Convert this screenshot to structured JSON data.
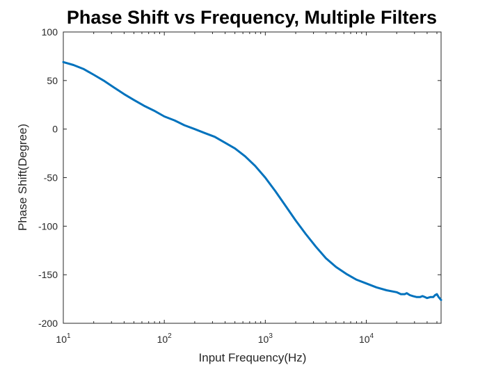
{
  "chart_data": {
    "type": "line",
    "title": "Phase Shift vs Frequency, Multiple Filters",
    "xlabel": "Input Frequency(Hz)",
    "ylabel": "Phase Shift(Degree)",
    "xscale": "log",
    "xlim": [
      10,
      55000
    ],
    "ylim": [
      -200,
      100
    ],
    "grid": false,
    "legend": "none",
    "line_color": "#0072BD",
    "x_ticks": [
      {
        "value": 10,
        "base": "10",
        "exp": "1"
      },
      {
        "value": 100,
        "base": "10",
        "exp": "2"
      },
      {
        "value": 1000,
        "base": "10",
        "exp": "3"
      },
      {
        "value": 10000,
        "base": "10",
        "exp": "4"
      }
    ],
    "y_ticks": [
      {
        "value": 100,
        "label": "100"
      },
      {
        "value": 50,
        "label": "50"
      },
      {
        "value": 0,
        "label": "0"
      },
      {
        "value": -50,
        "label": "-50"
      },
      {
        "value": -100,
        "label": "-100"
      },
      {
        "value": -150,
        "label": "-150"
      },
      {
        "value": -200,
        "label": "-200"
      }
    ],
    "series": [
      {
        "values": [
          [
            10,
            69
          ],
          [
            12.6,
            66
          ],
          [
            15.8,
            62
          ],
          [
            20,
            56
          ],
          [
            25,
            50
          ],
          [
            31.6,
            43
          ],
          [
            40,
            36
          ],
          [
            50,
            30
          ],
          [
            63,
            24
          ],
          [
            79,
            19
          ],
          [
            100,
            13
          ],
          [
            126,
            9
          ],
          [
            158,
            4
          ],
          [
            200,
            0
          ],
          [
            251,
            -4
          ],
          [
            316,
            -8
          ],
          [
            398,
            -14
          ],
          [
            501,
            -20
          ],
          [
            631,
            -28
          ],
          [
            794,
            -38
          ],
          [
            1000,
            -50
          ],
          [
            1259,
            -64
          ],
          [
            1585,
            -79
          ],
          [
            1995,
            -94
          ],
          [
            2512,
            -108
          ],
          [
            3162,
            -121
          ],
          [
            3981,
            -133
          ],
          [
            5012,
            -142
          ],
          [
            6310,
            -149
          ],
          [
            7943,
            -155
          ],
          [
            10000,
            -159
          ],
          [
            12589,
            -163
          ],
          [
            15849,
            -166
          ],
          [
            19953,
            -168
          ],
          [
            22000,
            -170
          ],
          [
            24000,
            -170
          ],
          [
            25119,
            -169
          ],
          [
            27000,
            -171
          ],
          [
            29000,
            -172
          ],
          [
            31623,
            -173
          ],
          [
            34000,
            -173
          ],
          [
            36000,
            -172
          ],
          [
            38000,
            -173
          ],
          [
            40000,
            -174
          ],
          [
            43000,
            -173
          ],
          [
            46000,
            -173
          ],
          [
            48000,
            -171
          ],
          [
            50000,
            -170
          ],
          [
            52000,
            -173
          ],
          [
            55000,
            -176
          ]
        ]
      }
    ]
  }
}
